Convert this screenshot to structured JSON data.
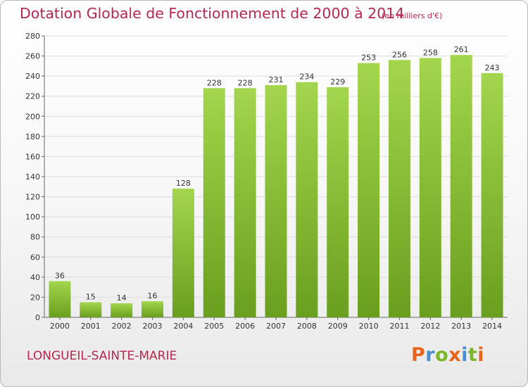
{
  "header": {
    "title": "Dotation Globale de Fonctionnement de 2000 à 2014",
    "subtitle": "(en milliers d'€)"
  },
  "footer": {
    "commune": "LONGUEIL-SAINTE-MARIE",
    "brand": [
      "P",
      "r",
      "o",
      "x",
      "i",
      "t",
      "i"
    ],
    "brand_colors": [
      "#e8641b",
      "#4a8fd0",
      "#7ab829",
      "#e8641b",
      "#4a8fd0",
      "#7ab829",
      "#e8641b"
    ]
  },
  "colors": {
    "accent": "#b5284f",
    "bar_top": "#a3d64d",
    "bar_bottom": "#6a9e1e",
    "grid": "#dcdcdc"
  },
  "chart_data": {
    "type": "bar",
    "categories": [
      "2000",
      "2001",
      "2002",
      "2003",
      "2004",
      "2005",
      "2006",
      "2007",
      "2008",
      "2009",
      "2010",
      "2011",
      "2012",
      "2013",
      "2014"
    ],
    "values": [
      36,
      15,
      14,
      16,
      128,
      228,
      228,
      231,
      234,
      229,
      253,
      256,
      258,
      261,
      243
    ],
    "title": "Dotation Globale de Fonctionnement de 2000 à 2014",
    "subtitle": "(en milliers d'€)",
    "ylim": [
      0,
      280
    ],
    "yticks": [
      0,
      20,
      40,
      60,
      80,
      100,
      120,
      140,
      160,
      180,
      200,
      220,
      240,
      260,
      280
    ],
    "grid": true,
    "legend": "none"
  }
}
